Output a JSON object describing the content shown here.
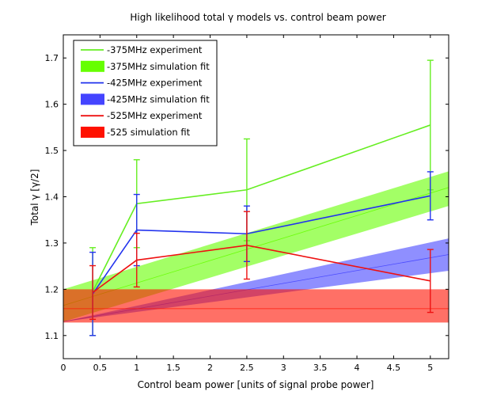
{
  "chart_data": {
    "type": "line",
    "title": "High likelihood total γ models vs. control beam power",
    "xlabel": "Control beam power [units of signal probe power]",
    "ylabel": "Total γ [γ/2]",
    "xlim": [
      0,
      5.25
    ],
    "ylim": [
      1.05,
      1.75
    ],
    "xticks": [
      "0",
      "0.5",
      "1",
      "1.5",
      "2",
      "2.5",
      "3",
      "3.5",
      "4",
      "4.5",
      "5"
    ],
    "yticks": [
      "1.1",
      "1.2",
      "1.3",
      "1.4",
      "1.5",
      "1.6",
      "1.7"
    ],
    "grid": false,
    "legend_position": "top-left",
    "bands": [
      {
        "name": "-375MHz simulation fit",
        "color": "#66ff00",
        "x": [
          0,
          5.25
        ],
        "lower": [
          1.13,
          1.38
        ],
        "upper": [
          1.2,
          1.455
        ],
        "center": [
          1.165,
          1.42
        ]
      },
      {
        "name": "-425MHz simulation fit",
        "color": "#4444ff",
        "x": [
          0,
          5.25
        ],
        "lower": [
          1.13,
          1.24
        ],
        "upper": [
          1.13,
          1.31
        ],
        "center": [
          1.13,
          1.275
        ]
      },
      {
        "name": "-525 simulation fit",
        "color": "#ff1100",
        "x": [
          0,
          5.25
        ],
        "lower": [
          1.128,
          1.128
        ],
        "upper": [
          1.2,
          1.2
        ],
        "center": [
          1.158,
          1.158
        ]
      }
    ],
    "series": [
      {
        "name": "-375MHz experiment",
        "color": "#66ee22",
        "x": [
          0.4,
          1,
          2.5,
          5
        ],
        "y": [
          1.195,
          1.385,
          1.415,
          1.555
        ],
        "err": [
          0.095,
          0.095,
          0.11,
          0.14
        ]
      },
      {
        "name": "-425MHz experiment",
        "color": "#2233ee",
        "x": [
          0.4,
          1,
          2.5,
          5
        ],
        "y": [
          1.19,
          1.328,
          1.32,
          1.402
        ],
        "err": [
          0.09,
          0.077,
          0.06,
          0.052
        ]
      },
      {
        "name": "-525MHz experiment",
        "color": "#ee1111",
        "x": [
          0.4,
          1,
          2.5,
          5
        ],
        "y": [
          1.193,
          1.263,
          1.295,
          1.218
        ],
        "err": [
          0.058,
          0.058,
          0.073,
          0.068
        ]
      }
    ],
    "legend": [
      {
        "label": "-375MHz experiment",
        "kind": "line",
        "color": "#66ee22"
      },
      {
        "label": "-375MHz simulation fit",
        "kind": "patch",
        "color": "#66ff00"
      },
      {
        "label": "-425MHz experiment",
        "kind": "line",
        "color": "#2233ee"
      },
      {
        "label": "-425MHz simulation fit",
        "kind": "patch",
        "color": "#4444ff"
      },
      {
        "label": "-525MHz experiment",
        "kind": "line",
        "color": "#ee1111"
      },
      {
        "label": "-525 simulation fit",
        "kind": "patch",
        "color": "#ff1100"
      }
    ]
  }
}
